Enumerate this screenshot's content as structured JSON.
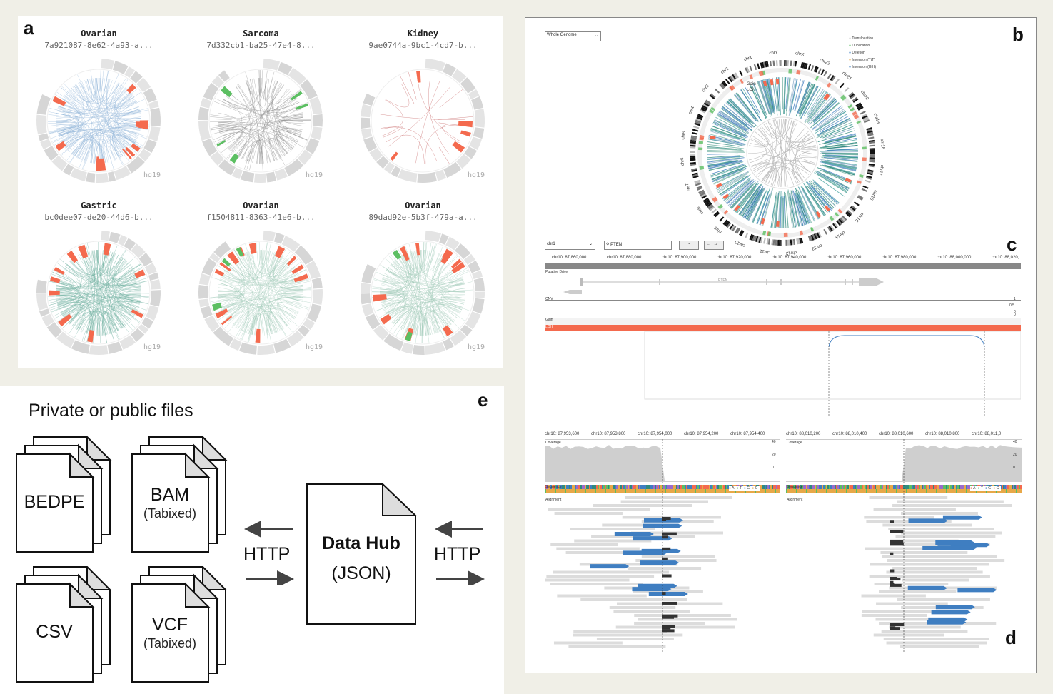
{
  "panel_labels": {
    "a": "a",
    "b": "b",
    "c": "c",
    "d": "d",
    "e": "e"
  },
  "circos_cells": [
    {
      "title": "Ovarian",
      "id": "7a921087-8e62-4a93-a...",
      "assembly": "hg19"
    },
    {
      "title": "Sarcoma",
      "id": "7d332cb1-ba25-47e4-8...",
      "assembly": "hg19"
    },
    {
      "title": "Kidney",
      "id": "9ae0744a-9bc1-4cd7-b...",
      "assembly": "hg19"
    },
    {
      "title": "Gastric",
      "id": "bc0dee07-de20-44d6-b...",
      "assembly": "hg19"
    },
    {
      "title": "Ovarian",
      "id": "f1504811-8363-41e6-b...",
      "assembly": "hg19"
    },
    {
      "title": "Ovarian",
      "id": "89dad92e-5b3f-479a-a...",
      "assembly": "hg19"
    }
  ],
  "panel_e": {
    "title": "Private or public files",
    "files": [
      {
        "label": "BEDPE",
        "sub": ""
      },
      {
        "label": "BAM",
        "sub": "(Tabixed)"
      },
      {
        "label": "CSV",
        "sub": ""
      },
      {
        "label": "VCF",
        "sub": "(Tabixed)"
      }
    ],
    "hub_title": "Data Hub",
    "hub_sub": "(JSON)",
    "http_left": "HTTP",
    "http_right": "HTTP"
  },
  "panel_b": {
    "select_value": "Whole Genome",
    "legend": [
      "Translocation",
      "Duplication",
      "Deletion",
      "Inversion (TtT)",
      "Inversion (HtH)"
    ],
    "chromosomes": [
      "chr1",
      "chrY",
      "chrX",
      "chr22",
      "chr21",
      "chr20",
      "chr19",
      "chr18",
      "chr17",
      "chr16",
      "chr15",
      "chr14",
      "chr13",
      "chr12",
      "chr11",
      "chr10",
      "chr9",
      "chr8",
      "chr7",
      "chr6",
      "chr5",
      "chr4",
      "chr3",
      "chr2"
    ],
    "ring_labels": {
      "gain": "Gain",
      "loh": "LOH"
    }
  },
  "panel_c": {
    "chrom_select": "chr1",
    "search_value": "PTEN",
    "zoom_buttons": [
      "+",
      "-"
    ],
    "pan_buttons": [
      "←",
      "→"
    ],
    "ticks": [
      "chr10: 87,860,000",
      "chr10: 87,880,000",
      "chr10: 87,900,000",
      "chr10: 87,920,000",
      "chr10: 87,940,000",
      "chr10: 87,960,000",
      "chr10: 87,980,000",
      "chr10: 88,000,000",
      "chr10: 88,020,"
    ],
    "tracks": {
      "driver": "Putative Driver",
      "gene": "PTEN",
      "cnv": "CNV",
      "cnv_ticks": [
        "1",
        "0.5",
        "0"
      ],
      "gain": "Gain",
      "gain_tick": "0",
      "loh": "LOH"
    }
  },
  "panel_d": {
    "left_ticks": [
      "chr10: 87,953,600",
      "chr10: 87,953,800",
      "chr10: 87,954,000",
      "chr10: 87,954,200",
      "chr10: 87,954,400"
    ],
    "right_ticks": [
      "chr10: 88,010,200",
      "chr10: 88,010,400",
      "chr10: 88,010,600",
      "chr10: 88,010,800",
      "chr10: 88,011,0"
    ],
    "coverage_label": "Coverage",
    "coverage_ticks": [
      "40",
      "20",
      "0"
    ],
    "sequence_label": "Sequence",
    "alignment_label": "Alignment",
    "bases": [
      "A",
      "T",
      "G",
      "C"
    ]
  },
  "colors": {
    "red": "#f46a4e",
    "green": "#5cbf62",
    "blue": "#3f7ec1",
    "teal": "#6fb0a0",
    "grey_ring": "#d8d8d8"
  }
}
